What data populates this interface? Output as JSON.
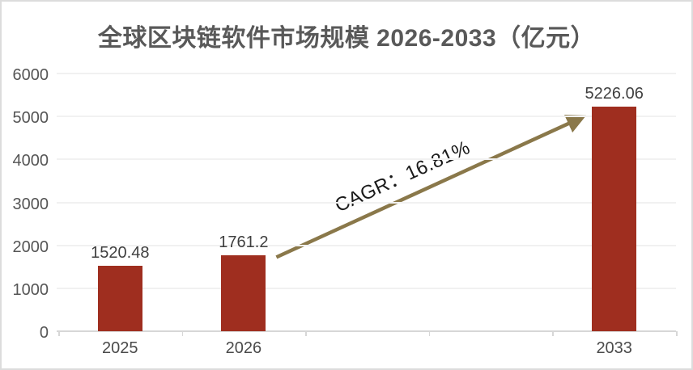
{
  "title": "全球区块链软件市场规模 2026-2033（亿元）",
  "annotation": {
    "cagr_label": "CAGR：16.81%"
  },
  "colors": {
    "bar": "#9f2e1f",
    "arrow": "#8a784a",
    "title_text": "#595959",
    "axis_text": "#4a4a4a",
    "y_tick_text": "#555555",
    "data_label_text": "#3f3f3f",
    "annotation_text": "#1a1a1a",
    "gridline": "#f1f1f1",
    "axis_line": "#d7d7d7",
    "frame_border": "#dcdcdc",
    "background": "#ffffff"
  },
  "chart_data": {
    "type": "bar",
    "title": "全球区块链软件市场规模 2026-2033（亿元）",
    "categories": [
      "2025",
      "2026",
      "2033"
    ],
    "values": [
      1520.48,
      1761.2,
      5226.06
    ],
    "data_labels": [
      "1520.48",
      "1761.2",
      "5226.06"
    ],
    "annotation": "CAGR：16.81%",
    "xlabel": "",
    "ylabel": "",
    "ylim": [
      0,
      6000
    ],
    "y_ticks": [
      0,
      1000,
      2000,
      3000,
      4000,
      5000,
      6000
    ],
    "grid": true,
    "legend": false,
    "notes": "x axis has 5 category slots; bars occupy slots 1, 2 and 5 (years 2025, 2026, 2033); olive arrow runs from top of 2026 bar to top of 2033 bar"
  }
}
